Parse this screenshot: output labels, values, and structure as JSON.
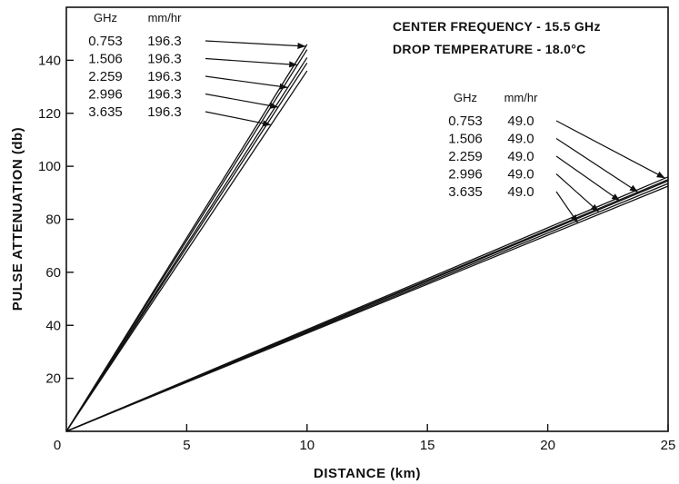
{
  "chart_data": {
    "type": "line",
    "xlabel": "DISTANCE (km)",
    "ylabel": "PULSE ATTENUATION (db)",
    "xlim": [
      0,
      25
    ],
    "ylim": [
      0,
      160
    ],
    "x_ticks": [
      0,
      5,
      10,
      15,
      20,
      25
    ],
    "y_ticks": [
      20,
      40,
      60,
      80,
      100,
      120,
      140
    ],
    "grid": false,
    "annotations": [
      "CENTER FREQUENCY - 15.5 GHz",
      "DROP TEMPERATURE - 18.0°C"
    ],
    "groups": [
      {
        "column_headers": [
          "GHz",
          "mm/hr"
        ],
        "legend_position": "top-left",
        "series": [
          {
            "bandwidth": "0.753",
            "rain_rate": "196.3",
            "x": [
              0,
              10
            ],
            "y": [
              0,
              146
            ]
          },
          {
            "bandwidth": "1.506",
            "rain_rate": "196.3",
            "x": [
              0,
              10
            ],
            "y": [
              0,
              144
            ]
          },
          {
            "bandwidth": "2.259",
            "rain_rate": "196.3",
            "x": [
              0,
              10
            ],
            "y": [
              0,
              141
            ]
          },
          {
            "bandwidth": "2.996",
            "rain_rate": "196.3",
            "x": [
              0,
              10
            ],
            "y": [
              0,
              139
            ]
          },
          {
            "bandwidth": "3.635",
            "rain_rate": "196.3",
            "x": [
              0,
              10
            ],
            "y": [
              0,
              136
            ]
          }
        ]
      },
      {
        "column_headers": [
          "GHz",
          "mm/hr"
        ],
        "legend_position": "center-right",
        "series": [
          {
            "bandwidth": "0.753",
            "rain_rate": "49.0",
            "x": [
              0,
              25
            ],
            "y": [
              0,
              96
            ]
          },
          {
            "bandwidth": "1.506",
            "rain_rate": "49.0",
            "x": [
              0,
              25
            ],
            "y": [
              0,
              95
            ]
          },
          {
            "bandwidth": "2.259",
            "rain_rate": "49.0",
            "x": [
              0,
              25
            ],
            "y": [
              0,
              94.5
            ]
          },
          {
            "bandwidth": "2.996",
            "rain_rate": "49.0",
            "x": [
              0,
              25
            ],
            "y": [
              0,
              93.5
            ]
          },
          {
            "bandwidth": "3.635",
            "rain_rate": "49.0",
            "x": [
              0,
              25
            ],
            "y": [
              0,
              92.5
            ]
          }
        ]
      }
    ]
  }
}
